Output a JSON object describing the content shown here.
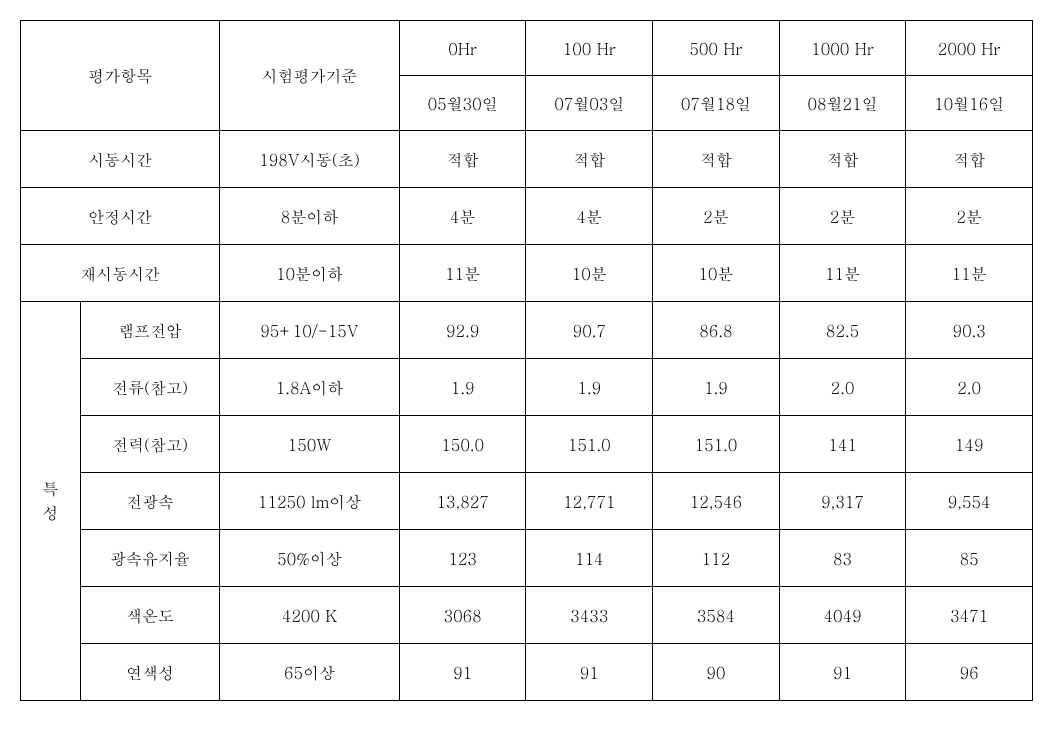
{
  "headers": {
    "category": "평가항목",
    "criteria": "시험평가기준",
    "hours": [
      "0Hr",
      "100 Hr",
      "500 Hr",
      "1000 Hr",
      "2000 Hr"
    ],
    "dates": [
      "05월30일",
      "07월03일",
      "07월18일",
      "08월21일",
      "10월16일"
    ]
  },
  "rows": [
    {
      "label": "시동시간",
      "criteria": "198V시동(초)",
      "values": [
        "적합",
        "적합",
        "적합",
        "적합",
        "적합"
      ]
    },
    {
      "label": "안정시간",
      "criteria": "8분이하",
      "values": [
        "4분",
        "4분",
        "2분",
        "2분",
        "2분"
      ]
    },
    {
      "label": "재시동시간",
      "criteria": "10분이하",
      "values": [
        "11분",
        "10분",
        "10분",
        "11분",
        "11분"
      ]
    }
  ],
  "characteristics": {
    "groupLabel": "특\n성",
    "rows": [
      {
        "label": "램프전압",
        "criteria": "95+10/-15V",
        "values": [
          "92.9",
          "90.7",
          "86.8",
          "82.5",
          "90.3"
        ]
      },
      {
        "label": "전류(참고)",
        "criteria": "1.8A이하",
        "values": [
          "1.9",
          "1.9",
          "1.9",
          "2.0",
          "2.0"
        ]
      },
      {
        "label": "전력(참고)",
        "criteria": "150W",
        "values": [
          "150.0",
          "151.0",
          "151.0",
          "141",
          "149"
        ]
      },
      {
        "label": "전광속",
        "criteria": "11250 lm이상",
        "values": [
          "13,827",
          "12,771",
          "12,546",
          "9,317",
          "9,554"
        ]
      },
      {
        "label": "광속유지율",
        "criteria": "50%이상",
        "values": [
          "123",
          "114",
          "112",
          "83",
          "85"
        ]
      },
      {
        "label": "색온도",
        "criteria": "4200 K",
        "values": [
          "3068",
          "3433",
          "3584",
          "4049",
          "3471"
        ]
      },
      {
        "label": "연색성",
        "criteria": "65이상",
        "values": [
          "91",
          "91",
          "90",
          "91",
          "96"
        ]
      }
    ]
  }
}
